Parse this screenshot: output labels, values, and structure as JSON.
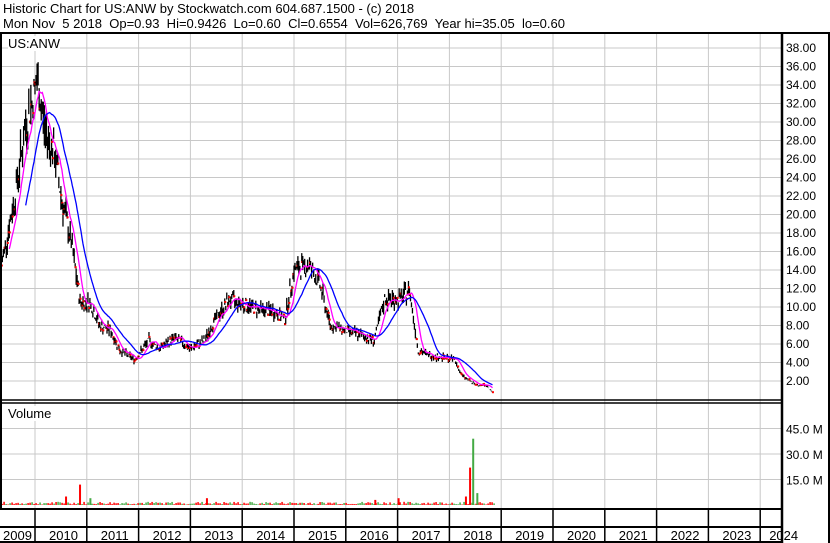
{
  "header": {
    "title": "Historic Chart for US:ANW by Stockwatch.com 604.687.1500 - (c) 2018",
    "quote": "Mon Nov  5 2018  Op=0.93  Hi=0.9426  Lo=0.60  Cl=0.6554  Vol=626,769  Year hi=35.05  lo=0.60"
  },
  "colors": {
    "price": "#000000",
    "up": "#ff0000",
    "ma_short": "#ff00ff",
    "ma_long": "#0000ff",
    "vol_up": "#44aa44",
    "vol_down": "#ff0000",
    "grid": "#c8c8c8"
  },
  "chart_data": [
    {
      "type": "line",
      "title": "US:ANW",
      "ylim": [
        0,
        39
      ],
      "y_ticks": [
        "2.00",
        "4.00",
        "6.00",
        "8.00",
        "10.00",
        "12.00",
        "14.00",
        "16.00",
        "18.00",
        "20.00",
        "22.00",
        "24.00",
        "26.00",
        "28.00",
        "30.00",
        "32.00",
        "34.00",
        "36.00",
        "38.00"
      ],
      "x_ticks": [
        "2009",
        "2010",
        "2011",
        "2012",
        "2013",
        "2014",
        "2015",
        "2016",
        "2017",
        "2018",
        "2019",
        "2020",
        "2021",
        "2022",
        "2023",
        "2024"
      ],
      "xlim": [
        2009.33,
        2024.4
      ],
      "grid": true,
      "series": [
        {
          "points": [
            [
              2009.35,
              14.5
            ],
            [
              2009.6,
              21.5
            ],
            [
              2009.8,
              29
            ],
            [
              2010.04,
              34.5
            ],
            [
              2010.2,
              29
            ],
            [
              2010.38,
              26.5
            ],
            [
              2010.52,
              21.5
            ],
            [
              2010.7,
              17
            ],
            [
              2010.87,
              10.5
            ],
            [
              2011.06,
              10.5
            ],
            [
              2011.25,
              8
            ],
            [
              2011.45,
              7.5
            ],
            [
              2011.64,
              5.3
            ],
            [
              2011.93,
              4.3
            ],
            [
              2012.2,
              6.4
            ],
            [
              2012.4,
              5.5
            ],
            [
              2012.7,
              6.7
            ],
            [
              2013.0,
              5.5
            ],
            [
              2013.28,
              6.4
            ],
            [
              2013.47,
              8.6
            ],
            [
              2013.76,
              10.8
            ],
            [
              2014.05,
              10.2
            ],
            [
              2014.34,
              9.7
            ],
            [
              2014.63,
              9.5
            ],
            [
              2014.82,
              8.6
            ],
            [
              2015.0,
              14
            ],
            [
              2015.3,
              14.5
            ],
            [
              2015.5,
              12.4
            ],
            [
              2015.7,
              8
            ],
            [
              2015.98,
              7.5
            ],
            [
              2016.27,
              7
            ],
            [
              2016.55,
              6.4
            ],
            [
              2016.75,
              10.8
            ],
            [
              2017.03,
              10.8
            ],
            [
              2017.23,
              11.8
            ],
            [
              2017.4,
              5.3
            ],
            [
              2017.6,
              4.8
            ],
            [
              2017.9,
              4.5
            ],
            [
              2018.1,
              4.3
            ],
            [
              2018.24,
              2.6
            ],
            [
              2018.5,
              1.6
            ],
            [
              2018.7,
              1.6
            ],
            [
              2018.85,
              0.65
            ]
          ]
        }
      ]
    },
    {
      "type": "bar",
      "title": "Volume",
      "ylim": [
        0,
        55
      ],
      "y_ticks": [
        "15.0 M",
        "30.0 M",
        "45.0 M"
      ],
      "unit": "M",
      "spikes": [
        [
          2010.58,
          5,
          "down"
        ],
        [
          2010.85,
          12,
          "down"
        ],
        [
          2011.05,
          4,
          "up"
        ],
        [
          2013.3,
          4,
          "down"
        ],
        [
          2016.55,
          3,
          "down"
        ],
        [
          2017.0,
          4,
          "down"
        ],
        [
          2018.3,
          5,
          "down"
        ],
        [
          2018.38,
          22,
          "down"
        ],
        [
          2018.44,
          39,
          "up"
        ],
        [
          2018.52,
          7,
          "up"
        ]
      ]
    }
  ]
}
